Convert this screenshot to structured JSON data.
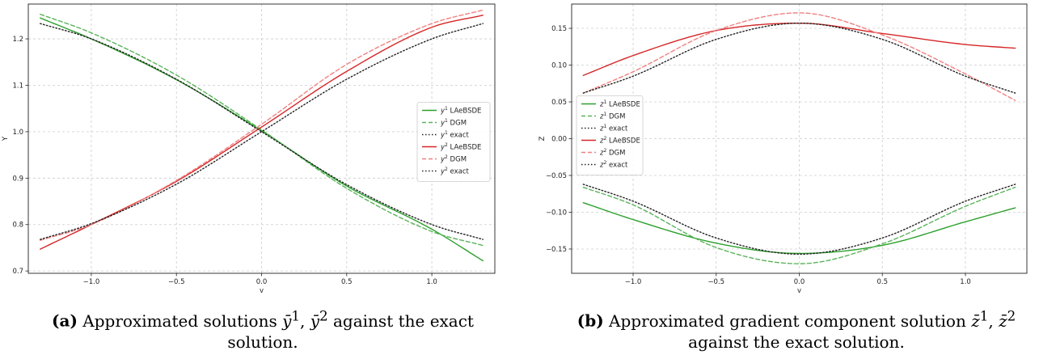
{
  "captions": [
    {
      "tag": "(a)",
      "text_html": "Approximated solutions <i>ȳ</i><sup>1</sup>, <i>ȳ</i><sup>2</sup> against the exact solution."
    },
    {
      "tag": "(b)",
      "text_html": "Approximated gradient component solution <i>z̄</i><sup>1</sup>, <i>z̄</i><sup>2</sup> against the exact solution."
    }
  ],
  "chart_data": [
    {
      "type": "line",
      "xlabel": "v",
      "ylabel": "Y",
      "xlim": [
        -1.37,
        1.37
      ],
      "ylim": [
        0.695,
        1.275
      ],
      "xticks": [
        -1.0,
        -0.5,
        0.0,
        0.5,
        1.0
      ],
      "xtick_labels": [
        "−1.0",
        "−0.5",
        "0.0",
        "0.5",
        "1.0"
      ],
      "yticks": [
        0.7,
        0.8,
        0.9,
        1.0,
        1.1,
        1.2
      ],
      "ytick_labels": [
        "0.7",
        "0.8",
        "0.9",
        "1.0",
        "1.1",
        "1.2"
      ],
      "grid": true,
      "legend_position": "center-right",
      "x": [
        -1.3,
        -1.0,
        -0.5,
        0.0,
        0.5,
        1.0,
        1.3
      ],
      "series": [
        {
          "name": "y¹ LAeBSDE",
          "label_base": "y",
          "sup": "1",
          "label_rest": " LAeBSDE",
          "color": "#2ca02c",
          "dash": "solid",
          "values": [
            1.245,
            1.2,
            1.112,
            1.002,
            0.883,
            0.79,
            0.722
          ]
        },
        {
          "name": "y¹ DGM",
          "label_base": "y",
          "sup": "1",
          "label_rest": " DGM",
          "color": "#5ab35a",
          "dash": "dashed",
          "values": [
            1.253,
            1.213,
            1.122,
            1.004,
            0.878,
            0.785,
            0.755
          ]
        },
        {
          "name": "y¹ exact",
          "label_base": "y",
          "sup": "1",
          "label_rest": " exact",
          "color": "#222222",
          "dash": "dotted",
          "values": [
            1.233,
            1.2,
            1.113,
            1.0,
            0.886,
            0.8,
            0.768
          ]
        },
        {
          "name": "y² LAeBSDE",
          "label_base": "y",
          "sup": "2",
          "label_rest": " LAeBSDE",
          "color": "#d62728",
          "dash": "solid",
          "values": [
            0.747,
            0.8,
            0.893,
            1.01,
            1.13,
            1.225,
            1.251
          ]
        },
        {
          "name": "y² DGM",
          "label_base": "y",
          "sup": "2",
          "label_rest": " DGM",
          "color": "#f08080",
          "dash": "dashed",
          "values": [
            0.766,
            0.8,
            0.895,
            1.016,
            1.145,
            1.233,
            1.262
          ]
        },
        {
          "name": "y² exact",
          "label_base": "y",
          "sup": "2",
          "label_rest": " exact",
          "color": "#222222",
          "dash": "dotted",
          "values": [
            0.768,
            0.802,
            0.887,
            1.0,
            1.113,
            1.2,
            1.233
          ]
        }
      ]
    },
    {
      "type": "line",
      "xlabel": "v",
      "ylabel": "Z",
      "xlim": [
        -1.37,
        1.37
      ],
      "ylim": [
        -0.183,
        0.183
      ],
      "xticks": [
        -1.0,
        -0.5,
        0.0,
        0.5,
        1.0
      ],
      "xtick_labels": [
        "−1.0",
        "−0.5",
        "0.0",
        "0.5",
        "1.0"
      ],
      "yticks": [
        -0.15,
        -0.1,
        -0.05,
        0.0,
        0.05,
        0.1,
        0.15
      ],
      "ytick_labels": [
        "−0.15",
        "−0.10",
        "−0.05",
        "0.00",
        "0.05",
        "0.10",
        "0.15"
      ],
      "grid": true,
      "legend_position": "center-left",
      "x": [
        -1.3,
        -1.0,
        -0.5,
        0.0,
        0.5,
        1.0,
        1.3
      ],
      "series": [
        {
          "name": "z¹ LAeBSDE",
          "label_base": "z",
          "sup": "1",
          "label_rest": " LAeBSDE",
          "color": "#2ca02c",
          "dash": "solid",
          "values": [
            -0.087,
            -0.11,
            -0.142,
            -0.156,
            -0.145,
            -0.113,
            -0.094
          ]
        },
        {
          "name": "z¹ DGM",
          "label_base": "z",
          "sup": "1",
          "label_rest": " DGM",
          "color": "#5ab35a",
          "dash": "dashed",
          "values": [
            -0.066,
            -0.09,
            -0.148,
            -0.17,
            -0.143,
            -0.092,
            -0.066
          ]
        },
        {
          "name": "z¹ exact",
          "label_base": "z",
          "sup": "1",
          "label_rest": " exact",
          "color": "#222222",
          "dash": "dotted",
          "values": [
            -0.062,
            -0.085,
            -0.135,
            -0.157,
            -0.135,
            -0.085,
            -0.062
          ]
        },
        {
          "name": "z² LAeBSDE",
          "label_base": "z",
          "sup": "2",
          "label_rest": " LAeBSDE",
          "color": "#d62728",
          "dash": "solid",
          "values": [
            0.086,
            0.113,
            0.147,
            0.157,
            0.143,
            0.128,
            0.123
          ]
        },
        {
          "name": "z² DGM",
          "label_base": "z",
          "sup": "2",
          "label_rest": " DGM",
          "color": "#f08080",
          "dash": "dashed",
          "values": [
            0.062,
            0.091,
            0.147,
            0.171,
            0.141,
            0.088,
            0.052
          ]
        },
        {
          "name": "z² exact",
          "label_base": "z",
          "sup": "2",
          "label_rest": " exact",
          "color": "#222222",
          "dash": "dotted",
          "values": [
            0.062,
            0.085,
            0.135,
            0.157,
            0.135,
            0.085,
            0.062
          ]
        }
      ]
    }
  ]
}
